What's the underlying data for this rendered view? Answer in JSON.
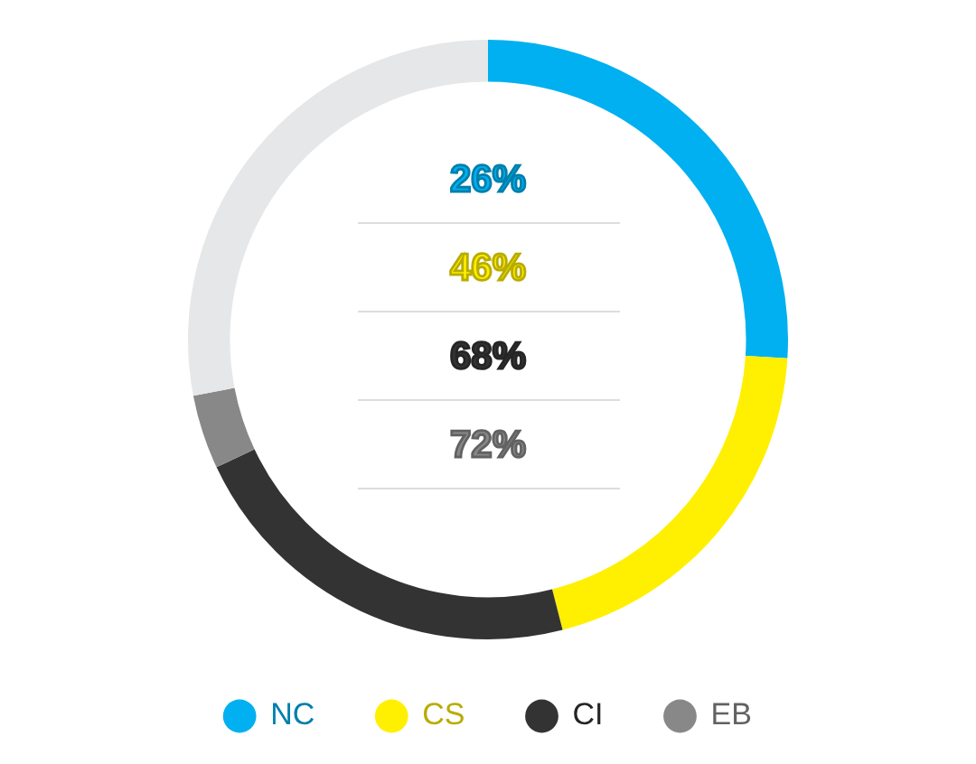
{
  "chart_data": {
    "type": "donut",
    "categories": [
      "NC",
      "CS",
      "CI",
      "EB",
      null
    ],
    "values": [
      26,
      20,
      22,
      4,
      28
    ],
    "colors": [
      "#00b0f0",
      "#ffef00",
      "#333333",
      "#888888",
      "#e6e7e8"
    ],
    "annotations": [
      "26%",
      "46%",
      "68%",
      "72%"
    ],
    "legend": "bottom"
  }
}
